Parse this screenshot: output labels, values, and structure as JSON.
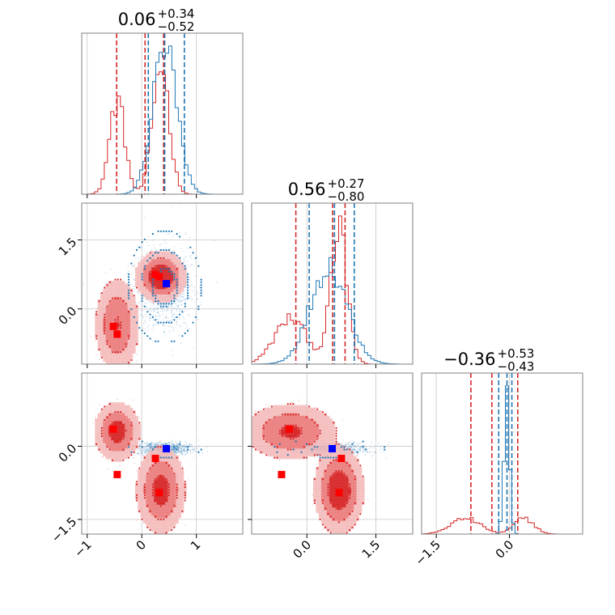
{
  "colors": {
    "blue": "#1f77b4",
    "red": "#d62728",
    "marker_blue": "#0000ff",
    "marker_red": "#ff0000"
  },
  "chart_data": {
    "type": "corner",
    "grid": true,
    "params": [
      {
        "range": [
          -1.1,
          1.85
        ],
        "ticks": [
          -1,
          0,
          1
        ],
        "tick_labels": [
          "−1",
          "0",
          "1"
        ]
      },
      {
        "range": [
          -1.2,
          2.3
        ],
        "ticks": [
          0.0,
          1.5
        ],
        "tick_labels": [
          "0.0",
          "1.5"
        ]
      },
      {
        "range": [
          -1.8,
          1.5
        ],
        "ticks": [
          -1.5,
          0.0
        ],
        "tick_labels": [
          "−1.5",
          "0.0"
        ]
      }
    ],
    "titles": [
      {
        "median": "0.06",
        "plus": "+0.34",
        "minus": "−0.52"
      },
      {
        "median": "0.56",
        "plus": "+0.27",
        "minus": "−0.80"
      },
      {
        "median": "−0.36",
        "plus": "+0.53",
        "minus": "−0.43"
      }
    ],
    "quantiles": {
      "red": [
        [
          -0.46,
          0.06,
          0.4
        ],
        [
          -0.24,
          0.56,
          0.83
        ],
        [
          -0.79,
          -0.36,
          0.17
        ]
      ],
      "blue": [
        [
          0.12,
          0.42,
          0.78
        ],
        [
          0.05,
          0.6,
          1.03
        ],
        [
          -0.22,
          -0.05,
          0.05
        ]
      ]
    },
    "series": [
      {
        "color": "red",
        "components": [
          {
            "w": 0.4,
            "mu": [
              -0.45,
              -0.35,
              0.3
            ],
            "sd": [
              0.14,
              0.35,
              0.2
            ]
          },
          {
            "w": 0.6,
            "mu": [
              0.35,
              0.7,
              -0.9
            ],
            "sd": [
              0.15,
              0.18,
              0.3
            ]
          }
        ]
      },
      {
        "color": "blue",
        "components": [
          {
            "w": 1.0,
            "mu": [
              0.42,
              0.48,
              -0.05
            ],
            "sd": [
              0.22,
              0.4,
              0.06
            ]
          }
        ]
      }
    ],
    "markers": {
      "red": [
        [
          -0.52,
          -0.38,
          0.35
        ],
        [
          -0.45,
          -0.55,
          -0.58
        ],
        [
          0.25,
          0.75,
          -0.25
        ],
        [
          0.32,
          0.7,
          -0.95
        ]
      ],
      "blue": [
        [
          0.45,
          0.55,
          -0.05
        ]
      ]
    }
  }
}
